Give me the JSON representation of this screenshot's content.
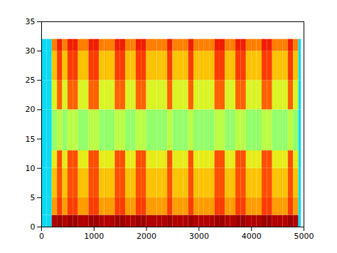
{
  "chart_data": {
    "type": "heatmap",
    "x_edges": [
      0,
      100,
      200,
      300,
      400,
      500,
      600,
      700,
      800,
      900,
      1000,
      1100,
      1200,
      1300,
      1400,
      1500,
      1600,
      1700,
      1800,
      1900,
      2000,
      2100,
      2200,
      2300,
      2400,
      2500,
      2600,
      2700,
      2800,
      2900,
      3000,
      3100,
      3200,
      3300,
      3400,
      3500,
      3600,
      3700,
      3800,
      3900,
      4000,
      4100,
      4200,
      4300,
      4400,
      4500,
      4600,
      4700,
      4800,
      4900,
      4950
    ],
    "y_edges": [
      0,
      2,
      5,
      10,
      13,
      20,
      25,
      30,
      32
    ],
    "cells": [
      [
        0.35,
        0.35,
        0.95,
        0.97,
        0.95,
        0.97,
        0.97,
        0.95,
        0.95,
        0.97,
        0.97,
        0.95,
        0.95,
        0.95,
        0.97,
        0.97,
        0.95,
        0.95,
        0.97,
        0.97,
        0.95,
        0.95,
        0.95,
        0.95,
        0.97,
        0.95,
        0.95,
        0.95,
        0.97,
        0.95,
        0.95,
        0.95,
        0.95,
        0.97,
        0.97,
        0.95,
        0.95,
        0.97,
        0.97,
        0.95,
        0.95,
        0.95,
        0.97,
        0.97,
        0.95,
        0.95,
        0.95,
        0.97,
        0.95,
        0.35
      ],
      [
        0.35,
        0.35,
        0.72,
        0.82,
        0.72,
        0.82,
        0.82,
        0.72,
        0.72,
        0.82,
        0.82,
        0.72,
        0.72,
        0.72,
        0.82,
        0.82,
        0.72,
        0.72,
        0.82,
        0.82,
        0.72,
        0.72,
        0.72,
        0.72,
        0.82,
        0.72,
        0.72,
        0.72,
        0.82,
        0.72,
        0.72,
        0.72,
        0.72,
        0.82,
        0.82,
        0.72,
        0.72,
        0.82,
        0.82,
        0.72,
        0.72,
        0.72,
        0.82,
        0.82,
        0.72,
        0.72,
        0.72,
        0.82,
        0.72,
        0.35
      ],
      [
        0.35,
        0.35,
        0.68,
        0.8,
        0.68,
        0.8,
        0.8,
        0.68,
        0.68,
        0.8,
        0.8,
        0.68,
        0.68,
        0.68,
        0.8,
        0.8,
        0.68,
        0.68,
        0.8,
        0.8,
        0.68,
        0.68,
        0.68,
        0.68,
        0.8,
        0.68,
        0.68,
        0.68,
        0.8,
        0.68,
        0.68,
        0.68,
        0.68,
        0.8,
        0.8,
        0.68,
        0.68,
        0.8,
        0.8,
        0.68,
        0.68,
        0.68,
        0.8,
        0.8,
        0.68,
        0.68,
        0.68,
        0.8,
        0.68,
        0.35
      ],
      [
        0.35,
        0.35,
        0.62,
        0.8,
        0.62,
        0.8,
        0.8,
        0.62,
        0.62,
        0.8,
        0.8,
        0.62,
        0.62,
        0.62,
        0.8,
        0.8,
        0.62,
        0.62,
        0.8,
        0.8,
        0.62,
        0.62,
        0.62,
        0.62,
        0.8,
        0.62,
        0.62,
        0.62,
        0.8,
        0.62,
        0.62,
        0.62,
        0.62,
        0.8,
        0.8,
        0.62,
        0.62,
        0.8,
        0.8,
        0.62,
        0.62,
        0.62,
        0.8,
        0.8,
        0.62,
        0.62,
        0.62,
        0.8,
        0.62,
        0.35
      ],
      [
        0.35,
        0.35,
        0.52,
        0.56,
        0.52,
        0.56,
        0.56,
        0.52,
        0.52,
        0.56,
        0.56,
        0.52,
        0.52,
        0.52,
        0.56,
        0.56,
        0.52,
        0.52,
        0.56,
        0.56,
        0.52,
        0.52,
        0.52,
        0.52,
        0.56,
        0.52,
        0.52,
        0.52,
        0.56,
        0.52,
        0.52,
        0.52,
        0.52,
        0.56,
        0.56,
        0.52,
        0.52,
        0.56,
        0.56,
        0.52,
        0.52,
        0.52,
        0.56,
        0.56,
        0.52,
        0.52,
        0.52,
        0.56,
        0.52,
        0.35
      ],
      [
        0.35,
        0.35,
        0.6,
        0.78,
        0.6,
        0.78,
        0.78,
        0.6,
        0.6,
        0.78,
        0.78,
        0.6,
        0.6,
        0.6,
        0.78,
        0.78,
        0.6,
        0.6,
        0.78,
        0.78,
        0.6,
        0.6,
        0.6,
        0.6,
        0.78,
        0.6,
        0.6,
        0.6,
        0.78,
        0.6,
        0.6,
        0.6,
        0.6,
        0.78,
        0.78,
        0.6,
        0.6,
        0.78,
        0.78,
        0.6,
        0.6,
        0.6,
        0.78,
        0.78,
        0.6,
        0.6,
        0.6,
        0.78,
        0.6,
        0.35
      ],
      [
        0.35,
        0.35,
        0.68,
        0.82,
        0.68,
        0.82,
        0.82,
        0.68,
        0.68,
        0.82,
        0.82,
        0.68,
        0.68,
        0.68,
        0.82,
        0.82,
        0.68,
        0.68,
        0.82,
        0.82,
        0.68,
        0.68,
        0.68,
        0.68,
        0.82,
        0.68,
        0.68,
        0.68,
        0.82,
        0.68,
        0.68,
        0.68,
        0.68,
        0.82,
        0.82,
        0.68,
        0.68,
        0.82,
        0.82,
        0.68,
        0.68,
        0.68,
        0.82,
        0.82,
        0.68,
        0.68,
        0.68,
        0.82,
        0.68,
        0.35
      ],
      [
        0.35,
        0.35,
        0.75,
        0.86,
        0.75,
        0.86,
        0.86,
        0.75,
        0.75,
        0.86,
        0.86,
        0.75,
        0.75,
        0.75,
        0.86,
        0.86,
        0.75,
        0.75,
        0.86,
        0.86,
        0.75,
        0.75,
        0.75,
        0.75,
        0.86,
        0.75,
        0.75,
        0.75,
        0.86,
        0.75,
        0.75,
        0.75,
        0.75,
        0.86,
        0.86,
        0.75,
        0.75,
        0.86,
        0.86,
        0.75,
        0.75,
        0.75,
        0.86,
        0.86,
        0.75,
        0.75,
        0.75,
        0.86,
        0.75,
        0.35
      ]
    ],
    "value_range": [
      0,
      1
    ],
    "xlim": [
      0,
      5000
    ],
    "ylim": [
      0,
      35
    ],
    "xticks": [
      0,
      1000,
      2000,
      3000,
      4000,
      5000
    ],
    "yticks": [
      0,
      5,
      10,
      15,
      20,
      25,
      30,
      35
    ],
    "grid": false
  }
}
